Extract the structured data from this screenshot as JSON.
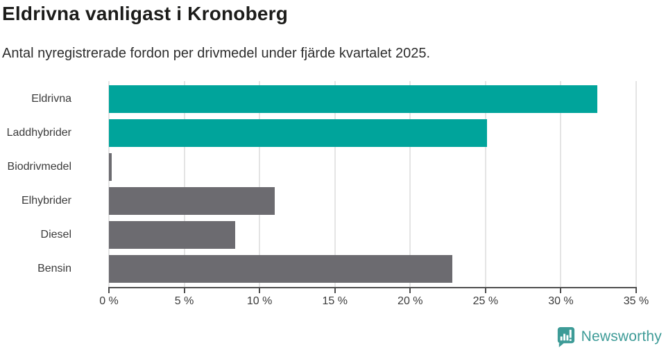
{
  "chart": {
    "title": "Eldrivna vanligast i Kronoberg",
    "subtitle": "Antal nyregistrerade fordon per drivmedel under fjärde kvartalet 2025."
  },
  "chart_data": {
    "type": "bar",
    "orientation": "horizontal",
    "title": "Eldrivna vanligast i Kronoberg",
    "subtitle": "Antal nyregistrerade fordon per drivmedel under fjärde kvartalet 2025.",
    "categories": [
      "Eldrivna",
      "Laddhybrider",
      "Biodrivmedel",
      "Elhybrider",
      "Diesel",
      "Bensin"
    ],
    "values": [
      32.4,
      25.1,
      0.2,
      11.0,
      8.4,
      22.8
    ],
    "unit": "%",
    "bar_colors": [
      "#00a49b",
      "#00a49b",
      "#6c6b70",
      "#6c6b70",
      "#6c6b70",
      "#6c6b70"
    ],
    "xlabel": "",
    "ylabel": "",
    "xlim": [
      0,
      35
    ],
    "x_tick_values": [
      0,
      5,
      10,
      15,
      20,
      25,
      30,
      35
    ],
    "x_tick_labels": [
      "0 %",
      "5 %",
      "10 %",
      "15 %",
      "20 %",
      "25 %",
      "30 %",
      "35 %"
    ],
    "grid": "vertical-gridlines-on",
    "legend": "none"
  },
  "colors": {
    "accent_teal": "#00a49b",
    "neutral_gray": "#6c6b70",
    "gridline": "#e4e4e4",
    "axis": "#4d4d4d",
    "title_text": "#1c1c1a",
    "body_text": "#3a3a3a",
    "logo_teal": "#3d9b97"
  },
  "logo": {
    "text": "Newsworthy",
    "icon": "bar-chart-speech-bubble-icon"
  }
}
